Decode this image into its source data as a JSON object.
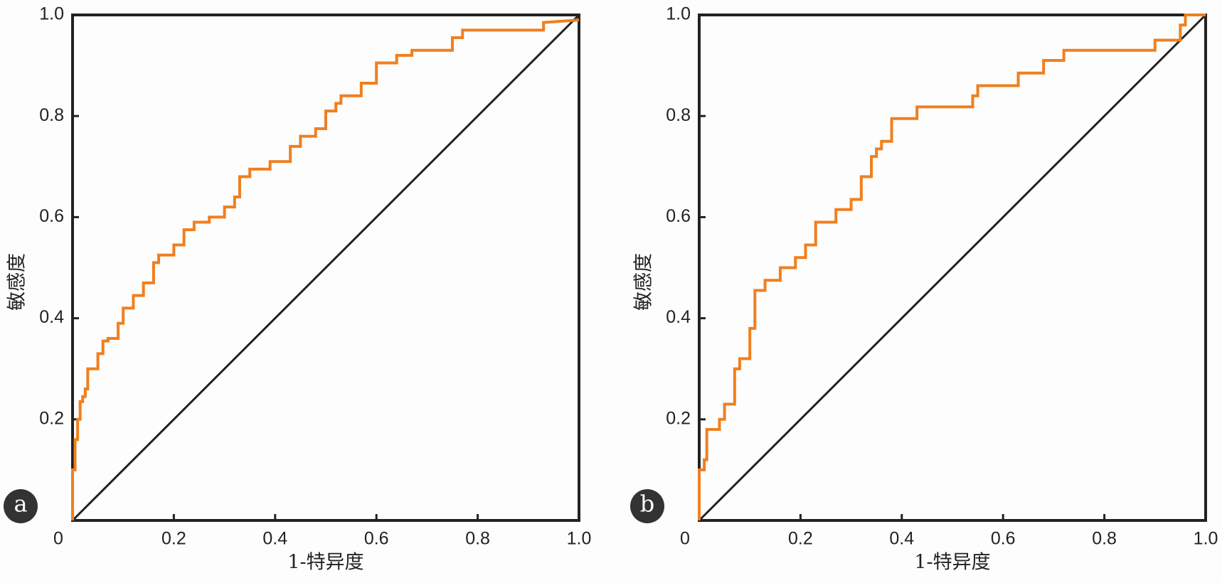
{
  "chart_data": [
    {
      "type": "line",
      "panel_label": "a",
      "xlabel": "1-特异度",
      "ylabel": "敏感度",
      "xlim": [
        0,
        1
      ],
      "ylim": [
        0,
        1
      ],
      "xticks": [
        0,
        0.2,
        0.4,
        0.6,
        0.8,
        {
          "value": 1,
          "label": "1.0"
        }
      ],
      "yticks": [
        0.2,
        0.4,
        0.6,
        0.8,
        {
          "value": 1,
          "label": "1.0"
        }
      ],
      "series": [
        {
          "color": "#f07f1f",
          "x": [
            0,
            0,
            0.005,
            0.005,
            0.01,
            0.01,
            0.015,
            0.015,
            0.02,
            0.02,
            0.025,
            0.025,
            0.03,
            0.03,
            0.05,
            0.05,
            0.06,
            0.06,
            0.07,
            0.07,
            0.09,
            0.09,
            0.1,
            0.1,
            0.12,
            0.12,
            0.14,
            0.14,
            0.16,
            0.16,
            0.17,
            0.17,
            0.2,
            0.2,
            0.22,
            0.22,
            0.24,
            0.24,
            0.27,
            0.27,
            0.3,
            0.3,
            0.32,
            0.32,
            0.33,
            0.33,
            0.35,
            0.35,
            0.39,
            0.39,
            0.43,
            0.43,
            0.45,
            0.45,
            0.48,
            0.48,
            0.5,
            0.5,
            0.52,
            0.52,
            0.53,
            0.53,
            0.57,
            0.57,
            0.6,
            0.6,
            0.64,
            0.64,
            0.67,
            0.67,
            0.75,
            0.75,
            0.77,
            0.77,
            0.93,
            0.93,
            1
          ],
          "y": [
            0,
            0.1,
            0.1,
            0.16,
            0.16,
            0.2,
            0.2,
            0.235,
            0.235,
            0.245,
            0.245,
            0.26,
            0.26,
            0.3,
            0.3,
            0.33,
            0.33,
            0.355,
            0.355,
            0.36,
            0.36,
            0.39,
            0.39,
            0.42,
            0.42,
            0.445,
            0.445,
            0.47,
            0.47,
            0.51,
            0.51,
            0.525,
            0.525,
            0.545,
            0.545,
            0.575,
            0.575,
            0.59,
            0.59,
            0.6,
            0.6,
            0.62,
            0.62,
            0.64,
            0.64,
            0.68,
            0.68,
            0.695,
            0.695,
            0.71,
            0.71,
            0.74,
            0.74,
            0.76,
            0.76,
            0.775,
            0.775,
            0.81,
            0.81,
            0.825,
            0.825,
            0.84,
            0.84,
            0.865,
            0.865,
            0.905,
            0.905,
            0.92,
            0.92,
            0.93,
            0.93,
            0.955,
            0.955,
            0.97,
            0.97,
            0.985,
            0.99
          ]
        }
      ]
    },
    {
      "type": "line",
      "panel_label": "b",
      "xlabel": "1-特异度",
      "ylabel": "敏感度",
      "xlim": [
        0,
        1
      ],
      "ylim": [
        0,
        1
      ],
      "xticks": [
        0,
        0.2,
        0.4,
        0.6,
        0.8,
        {
          "value": 1,
          "label": "1.0"
        }
      ],
      "yticks": [
        0.2,
        0.4,
        0.6,
        0.8,
        {
          "value": 1,
          "label": "1.0"
        }
      ],
      "series": [
        {
          "color": "#f07f1f",
          "x": [
            0,
            0,
            0.01,
            0.01,
            0.015,
            0.015,
            0.04,
            0.04,
            0.05,
            0.05,
            0.07,
            0.07,
            0.08,
            0.08,
            0.1,
            0.1,
            0.11,
            0.11,
            0.13,
            0.13,
            0.16,
            0.16,
            0.19,
            0.19,
            0.21,
            0.21,
            0.23,
            0.23,
            0.27,
            0.27,
            0.3,
            0.3,
            0.32,
            0.32,
            0.34,
            0.34,
            0.35,
            0.35,
            0.36,
            0.36,
            0.38,
            0.38,
            0.43,
            0.43,
            0.54,
            0.54,
            0.55,
            0.55,
            0.63,
            0.63,
            0.68,
            0.68,
            0.72,
            0.72,
            0.9,
            0.9,
            0.95,
            0.95,
            0.96,
            0.96,
            1
          ],
          "y": [
            0,
            0.1,
            0.1,
            0.12,
            0.12,
            0.18,
            0.18,
            0.2,
            0.2,
            0.23,
            0.23,
            0.3,
            0.3,
            0.32,
            0.32,
            0.38,
            0.38,
            0.455,
            0.455,
            0.475,
            0.475,
            0.5,
            0.5,
            0.52,
            0.52,
            0.545,
            0.545,
            0.59,
            0.59,
            0.615,
            0.615,
            0.635,
            0.635,
            0.68,
            0.68,
            0.72,
            0.72,
            0.735,
            0.735,
            0.75,
            0.75,
            0.795,
            0.795,
            0.818,
            0.818,
            0.84,
            0.84,
            0.86,
            0.86,
            0.885,
            0.885,
            0.91,
            0.91,
            0.93,
            0.93,
            0.95,
            0.95,
            0.98,
            0.98,
            1,
            1
          ]
        }
      ]
    }
  ]
}
